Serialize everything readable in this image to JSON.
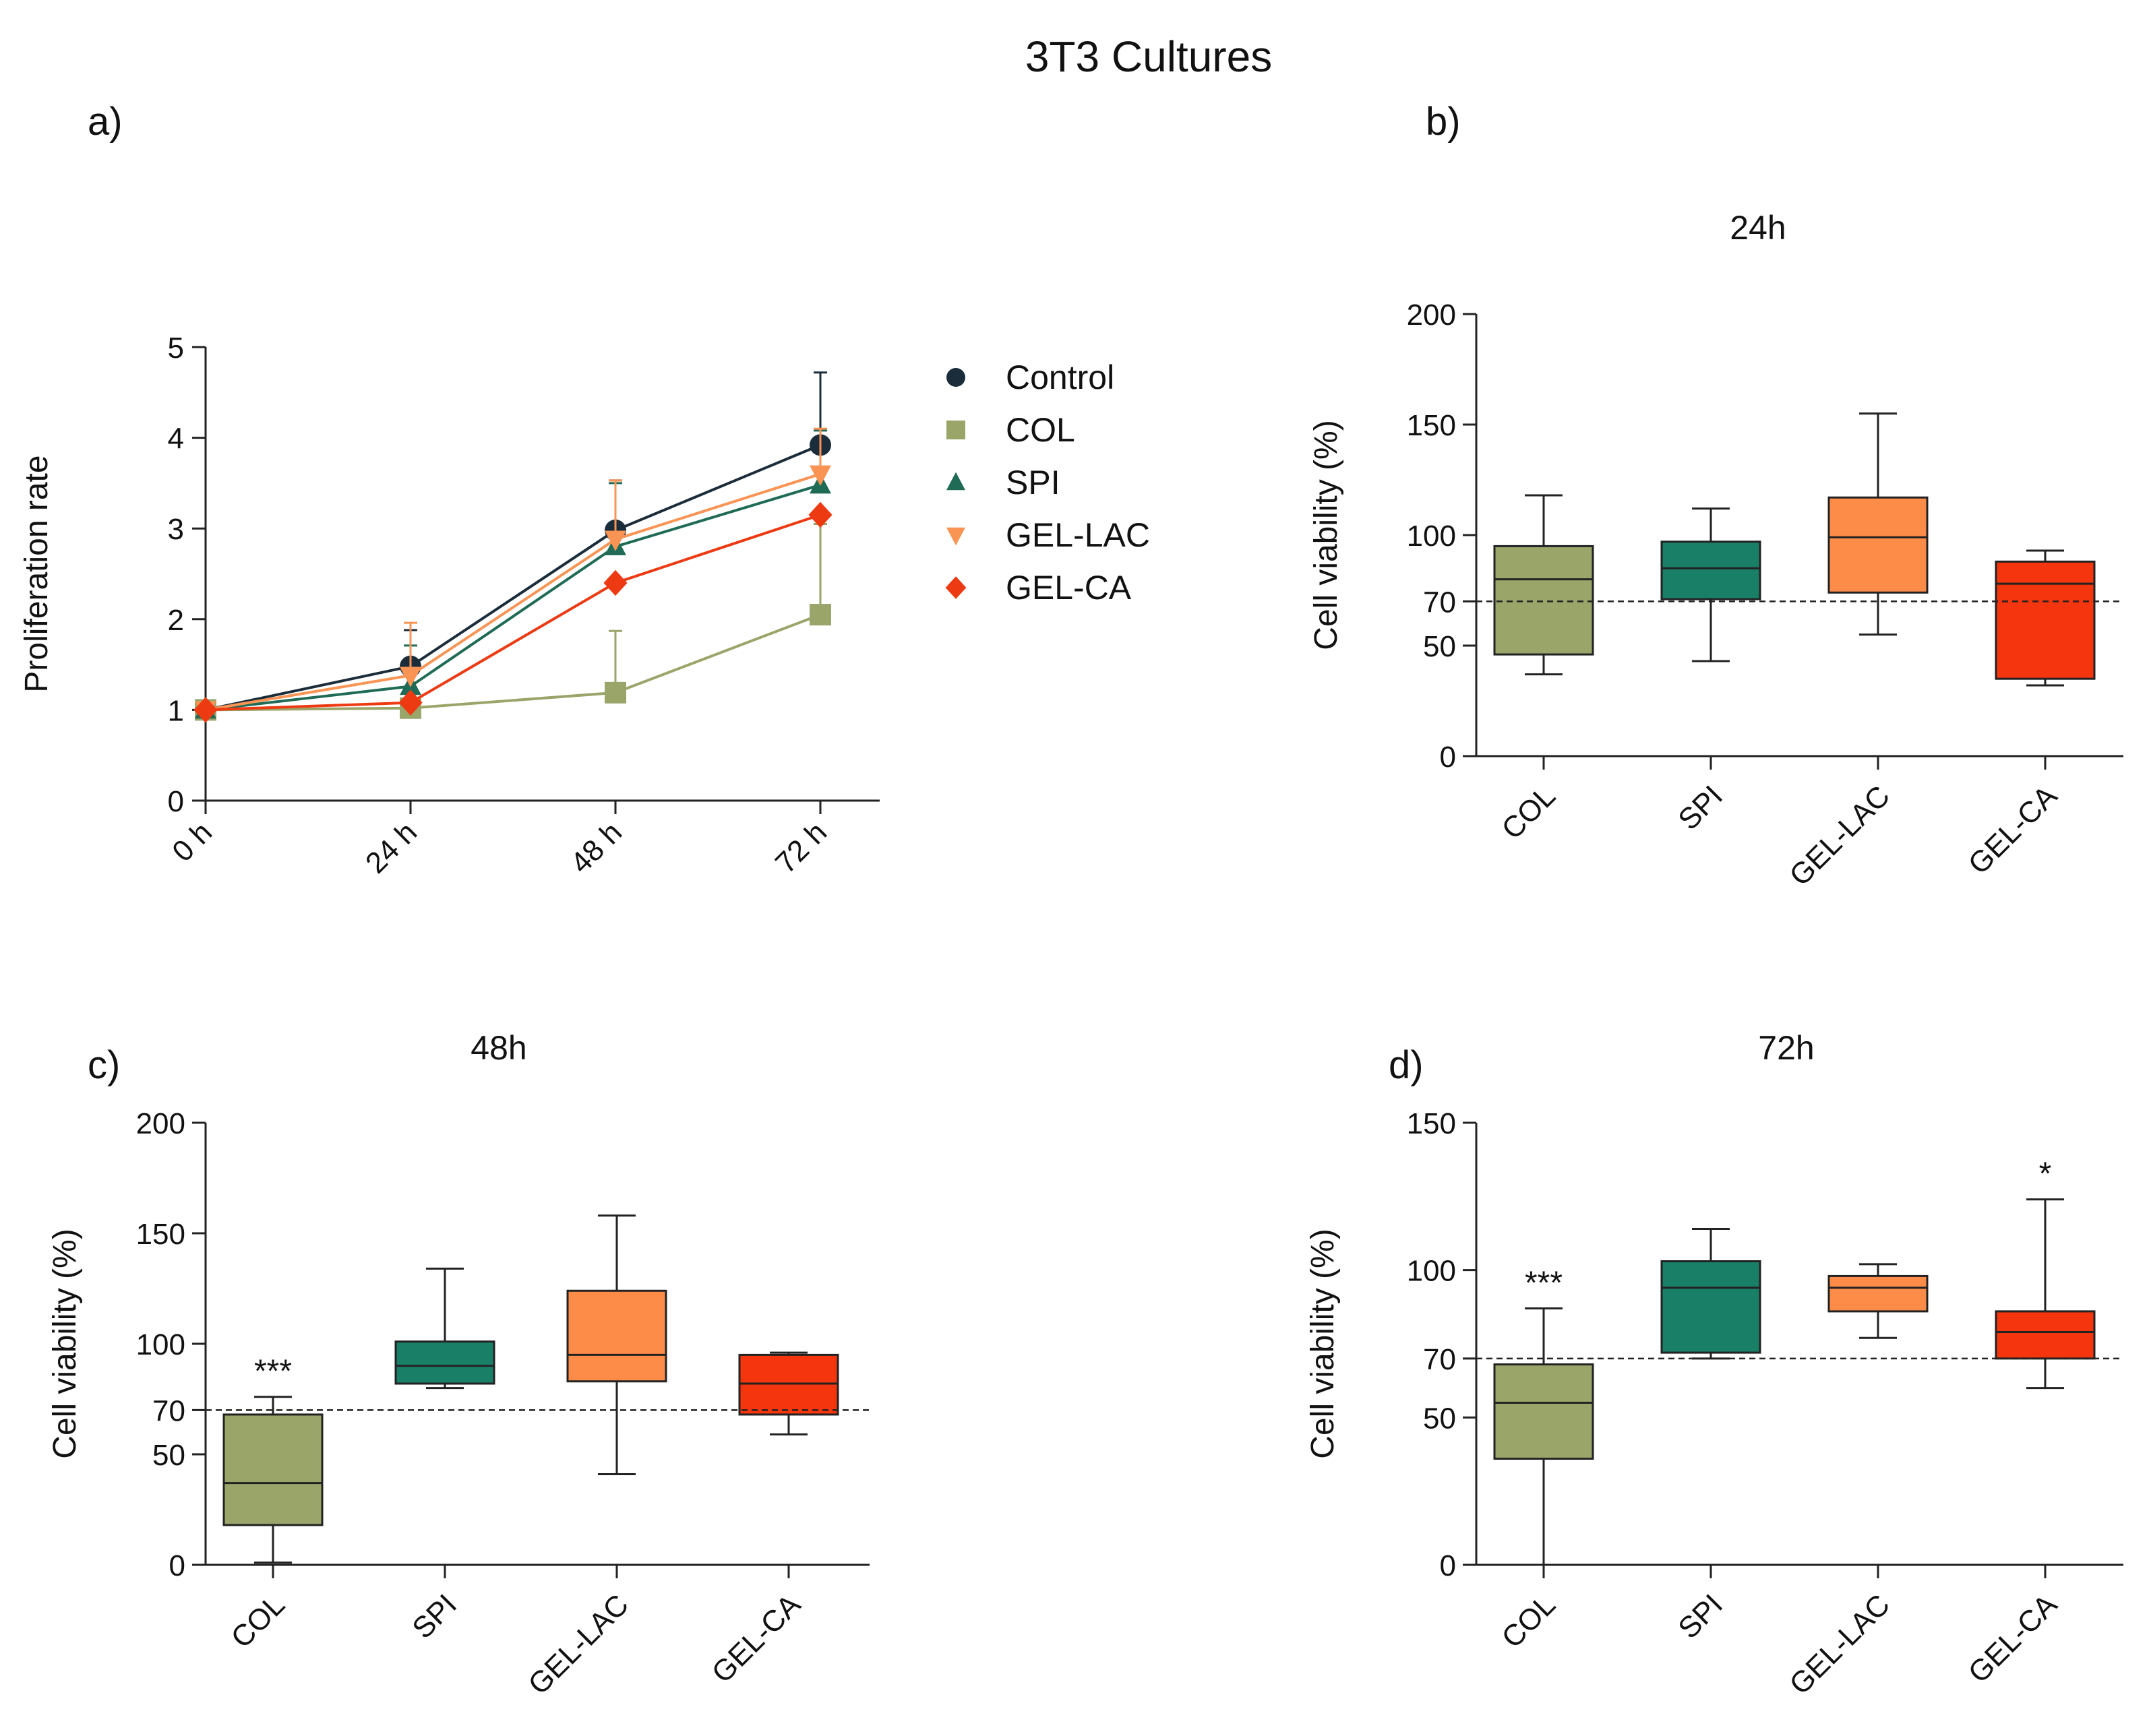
{
  "figure": {
    "title": "3T3 Cultures",
    "panel_labels": [
      "a)",
      "b)",
      "c)",
      "d)"
    ]
  },
  "chart_data": [
    {
      "id": "a",
      "type": "line",
      "title": "",
      "xlabel": "",
      "ylabel": "Proliferation rate",
      "categories": [
        "0 h",
        "24 h",
        "48 h",
        "72 h"
      ],
      "ylim": [
        0,
        5
      ],
      "yticks": [
        0,
        1,
        2,
        3,
        4,
        5
      ],
      "legend_position": "right",
      "series": [
        {
          "name": "Control",
          "marker": "circle",
          "color": "#1b2d3a",
          "values": [
            1.0,
            1.48,
            2.98,
            3.92
          ],
          "err": [
            0,
            0.4,
            0.55,
            0.8
          ]
        },
        {
          "name": "COL",
          "marker": "square",
          "color": "#9aa56a",
          "values": [
            1.0,
            1.02,
            1.19,
            2.05
          ],
          "err": [
            0,
            0,
            0.68,
            1.0
          ]
        },
        {
          "name": "SPI",
          "marker": "triangle-up",
          "color": "#1f6b55",
          "values": [
            1.0,
            1.26,
            2.8,
            3.48
          ],
          "err": [
            0,
            0.45,
            0.7,
            0.6
          ]
        },
        {
          "name": "GEL-LAC",
          "marker": "triangle-down",
          "color": "#f99454",
          "values": [
            1.0,
            1.38,
            2.88,
            3.6
          ],
          "err": [
            0,
            0.58,
            0.65,
            0.5
          ]
        },
        {
          "name": "GEL-CA",
          "marker": "diamond",
          "color": "#ee3a12",
          "values": [
            1.0,
            1.08,
            2.4,
            3.15
          ],
          "err": [
            0,
            0,
            0,
            0
          ]
        }
      ]
    },
    {
      "id": "b",
      "type": "box",
      "title": "24h",
      "ylabel": "Cell viability (%)",
      "categories": [
        "COL",
        "SPI",
        "GEL-LAC",
        "GEL-CA"
      ],
      "ylim": [
        0,
        200
      ],
      "yticks": [
        0,
        50,
        70,
        100,
        150,
        200
      ],
      "reference_line": 70,
      "boxes": [
        {
          "name": "COL",
          "min": 37,
          "q1": 46,
          "median": 80,
          "q3": 95,
          "max": 118,
          "annotation": ""
        },
        {
          "name": "SPI",
          "min": 43,
          "q1": 71,
          "median": 85,
          "q3": 97,
          "max": 112,
          "annotation": ""
        },
        {
          "name": "GEL-LAC",
          "min": 55,
          "q1": 74,
          "median": 99,
          "q3": 117,
          "max": 155,
          "annotation": ""
        },
        {
          "name": "GEL-CA",
          "min": 32,
          "q1": 35,
          "median": 78,
          "q3": 88,
          "max": 93,
          "annotation": ""
        }
      ],
      "colors": [
        "#9aa56a",
        "#1a7f67",
        "#fd8c49",
        "#f5350d"
      ]
    },
    {
      "id": "c",
      "type": "box",
      "title": "48h",
      "ylabel": "Cell viability (%)",
      "categories": [
        "COL",
        "SPI",
        "GEL-LAC",
        "GEL-CA"
      ],
      "ylim": [
        0,
        200
      ],
      "yticks": [
        0,
        50,
        70,
        100,
        150,
        200
      ],
      "reference_line": 70,
      "boxes": [
        {
          "name": "COL",
          "min": 1,
          "q1": 18,
          "median": 37,
          "q3": 68,
          "max": 76,
          "annotation": "***"
        },
        {
          "name": "SPI",
          "min": 80,
          "q1": 82,
          "median": 90,
          "q3": 101,
          "max": 134,
          "annotation": ""
        },
        {
          "name": "GEL-LAC",
          "min": 41,
          "q1": 83,
          "median": 95,
          "q3": 124,
          "max": 158,
          "annotation": ""
        },
        {
          "name": "GEL-CA",
          "min": 59,
          "q1": 68,
          "median": 82,
          "q3": 95,
          "max": 96,
          "annotation": ""
        }
      ],
      "colors": [
        "#9aa56a",
        "#1a7f67",
        "#fd8c49",
        "#f5350d"
      ]
    },
    {
      "id": "d",
      "type": "box",
      "title": "72h",
      "ylabel": "Cell viability (%)",
      "categories": [
        "COL",
        "SPI",
        "GEL-LAC",
        "GEL-CA"
      ],
      "ylim": [
        0,
        150
      ],
      "yticks": [
        0,
        50,
        70,
        100,
        150
      ],
      "reference_line": 70,
      "boxes": [
        {
          "name": "COL",
          "min": 0,
          "q1": 36,
          "median": 55,
          "q3": 68,
          "max": 87,
          "annotation": "***"
        },
        {
          "name": "SPI",
          "min": 70,
          "q1": 72,
          "median": 94,
          "q3": 103,
          "max": 114,
          "annotation": ""
        },
        {
          "name": "GEL-LAC",
          "min": 77,
          "q1": 86,
          "median": 94,
          "q3": 98,
          "max": 102,
          "annotation": ""
        },
        {
          "name": "GEL-CA",
          "min": 60,
          "q1": 70,
          "median": 79,
          "q3": 86,
          "max": 124,
          "annotation": "*"
        }
      ],
      "colors": [
        "#9aa56a",
        "#1a7f67",
        "#fd8c49",
        "#f5350d"
      ]
    }
  ]
}
